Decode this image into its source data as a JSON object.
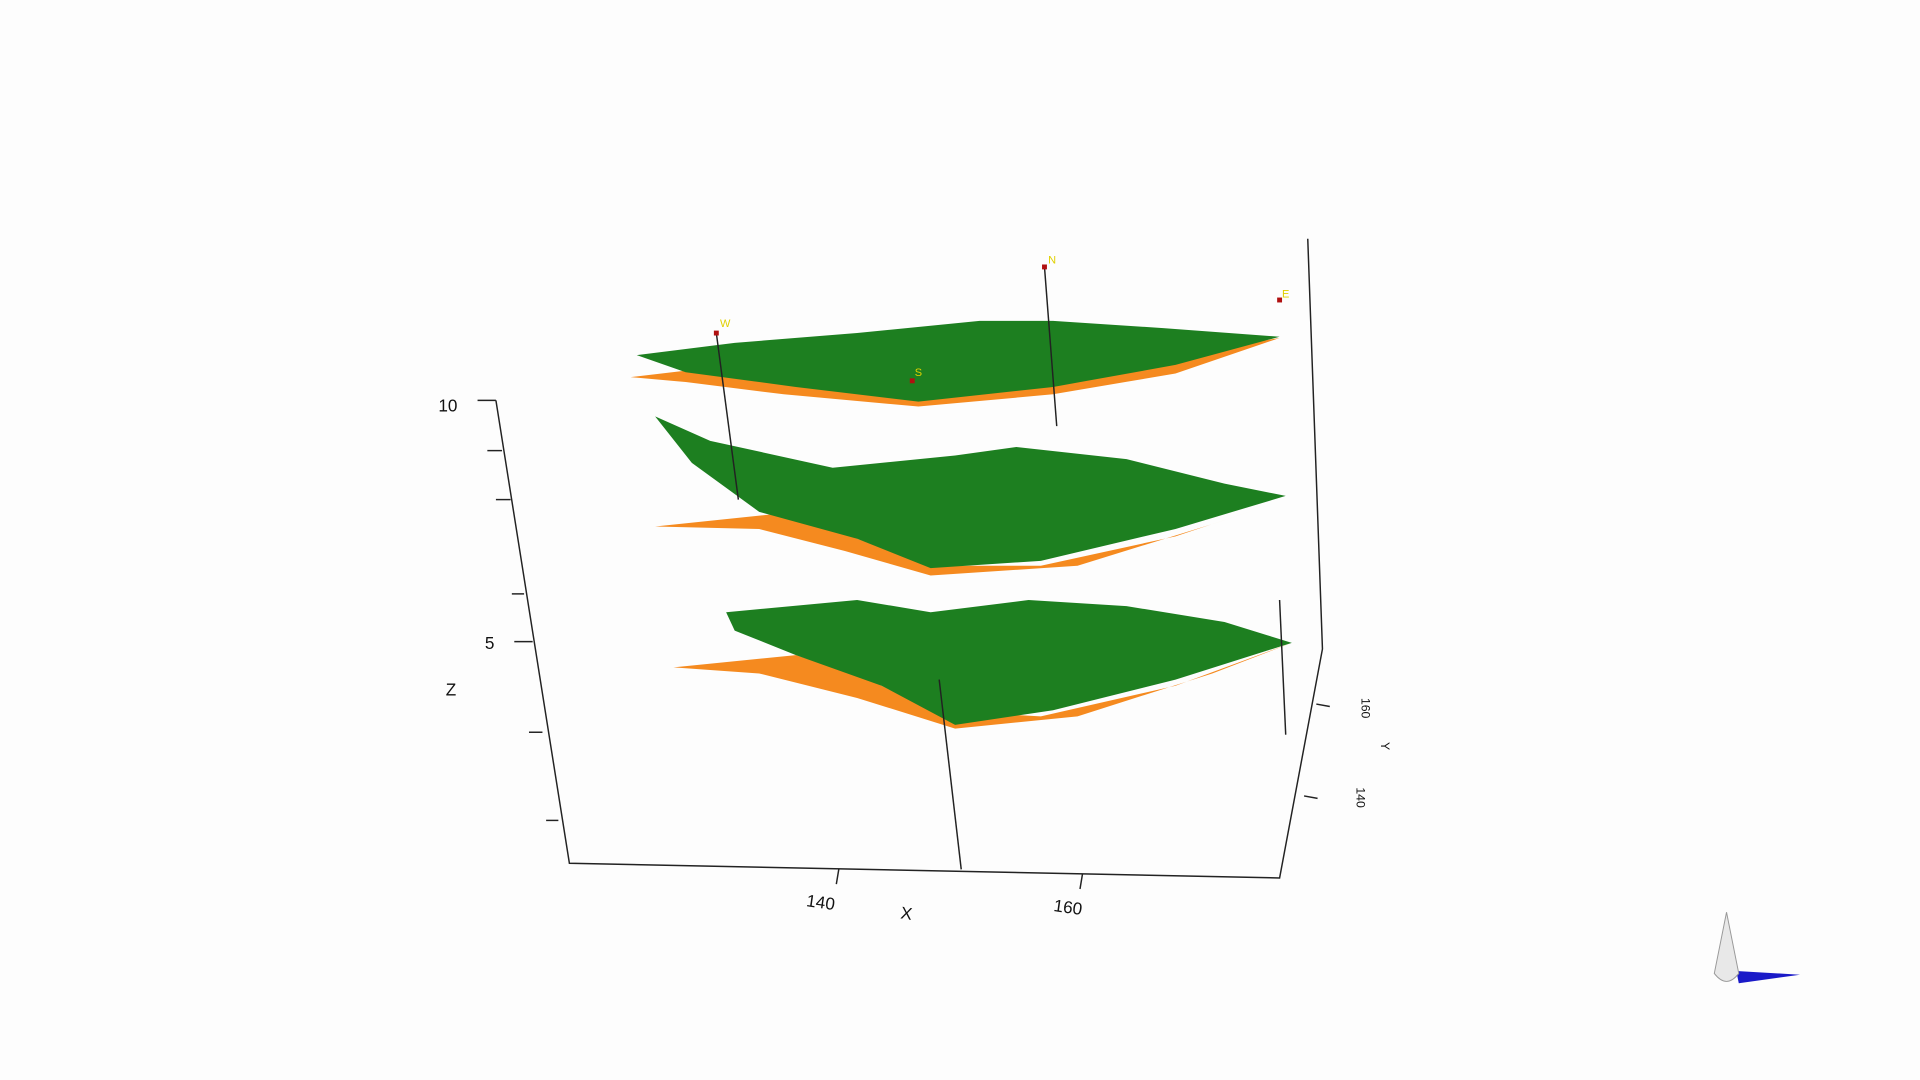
{
  "axes": {
    "z": {
      "label": "Z",
      "ticks": [
        10,
        5
      ]
    },
    "x": {
      "label": "X",
      "ticks": [
        140,
        160
      ]
    },
    "y": {
      "label": "Y",
      "ticks": [
        160,
        140
      ]
    }
  },
  "markers": [
    {
      "label": "W"
    },
    {
      "label": "S"
    },
    {
      "label": "N"
    },
    {
      "label": "E"
    }
  ]
}
